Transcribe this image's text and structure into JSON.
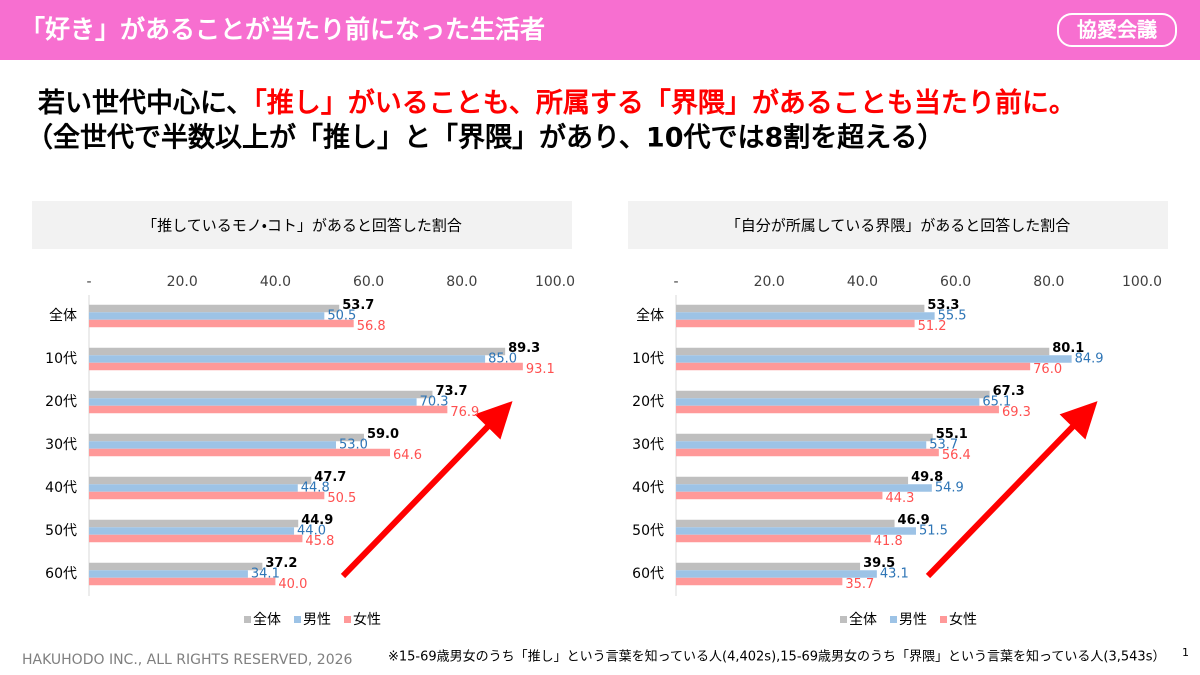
{
  "header": {
    "title": "「好き」があることが当たり前になった生活者",
    "logo": "協愛会議"
  },
  "headline": {
    "line1_black": "若い世代中心に、",
    "line1_red": "「推し」がいることも、所属する「界隈」があることも当たり前に。",
    "line2": "（全世代で半数以上が「推し」と「界隈」があり、10代では8割を超える）"
  },
  "footer": {
    "copyright": "HAKUHODO INC., ALL RIGHTS RESERVED, 2026",
    "note": "※15-69歳男女のうち「推し」という言葉を知っている人(4,402s),15-69歳男女のうち「界隈」という言葉を知っている人(3,543s）",
    "page": "1"
  },
  "chart_data": [
    {
      "type": "hbar",
      "title": "「推しているモノ・コト」があると回答した割合",
      "categories": [
        "全体",
        "10代",
        "20代",
        "30代",
        "40代",
        "50代",
        "60代"
      ],
      "xlim": [
        0,
        100
      ],
      "xticks": [
        {
          "value": 0,
          "label": "-"
        },
        {
          "value": 20,
          "label": "20.0"
        },
        {
          "value": 40,
          "label": "40.0"
        },
        {
          "value": 60,
          "label": "60.0"
        },
        {
          "value": 80,
          "label": "80.0"
        },
        {
          "value": 100,
          "label": "100.0"
        }
      ],
      "grid": false,
      "series": [
        {
          "name": "全体",
          "color": "#bfbfbf",
          "label_color": "#000000",
          "values": [
            53.7,
            89.3,
            73.7,
            59.0,
            47.7,
            44.9,
            37.2
          ],
          "value_labels": [
            "53.7",
            "89.3",
            "73.7",
            "59.0",
            "47.7",
            "44.9",
            "37.2"
          ]
        },
        {
          "name": "男性",
          "color": "#9dc3e6",
          "label_color": "#2e75b6",
          "values": [
            50.5,
            85.0,
            70.3,
            53.0,
            44.8,
            44.0,
            34.1
          ],
          "value_labels": [
            "50.5",
            "85.0",
            "70.3",
            "53.0",
            "44.8",
            "44.0",
            "34.1"
          ]
        },
        {
          "name": "女性",
          "color": "#ff9999",
          "label_color": "#ff5050",
          "values": [
            56.8,
            93.1,
            76.9,
            64.6,
            50.5,
            45.8,
            40.0
          ],
          "value_labels": [
            "56.8",
            "93.1",
            "76.9",
            "64.6",
            "50.5",
            "45.8",
            "40.0"
          ]
        }
      ]
    },
    {
      "type": "hbar",
      "title": "「自分が所属している界隈」があると回答した割合",
      "categories": [
        "全体",
        "10代",
        "20代",
        "30代",
        "40代",
        "50代",
        "60代"
      ],
      "xlim": [
        0,
        100
      ],
      "xticks": [
        {
          "value": 0,
          "label": "-"
        },
        {
          "value": 20,
          "label": "20.0"
        },
        {
          "value": 40,
          "label": "40.0"
        },
        {
          "value": 60,
          "label": "60.0"
        },
        {
          "value": 80,
          "label": "80.0"
        },
        {
          "value": 100,
          "label": "100.0"
        }
      ],
      "grid": false,
      "series": [
        {
          "name": "全体",
          "color": "#bfbfbf",
          "label_color": "#000000",
          "values": [
            53.3,
            80.1,
            67.3,
            55.1,
            49.8,
            46.9,
            39.5
          ],
          "value_labels": [
            "53.3",
            "80.1",
            "67.3",
            "55.1",
            "49.8",
            "46.9",
            "39.5"
          ]
        },
        {
          "name": "男性",
          "color": "#9dc3e6",
          "label_color": "#2e75b6",
          "values": [
            55.5,
            84.9,
            65.1,
            53.7,
            54.9,
            51.5,
            43.1
          ],
          "value_labels": [
            "55.5",
            "84.9",
            "65.1",
            "53.7",
            "54.9",
            "51.5",
            "43.1"
          ]
        },
        {
          "name": "女性",
          "color": "#ff9999",
          "label_color": "#ff5050",
          "values": [
            51.2,
            76.0,
            69.3,
            56.4,
            44.3,
            41.8,
            35.7
          ],
          "value_labels": [
            "51.2",
            "76.0",
            "69.3",
            "56.4",
            "44.3",
            "41.8",
            "35.7"
          ]
        }
      ]
    }
  ]
}
